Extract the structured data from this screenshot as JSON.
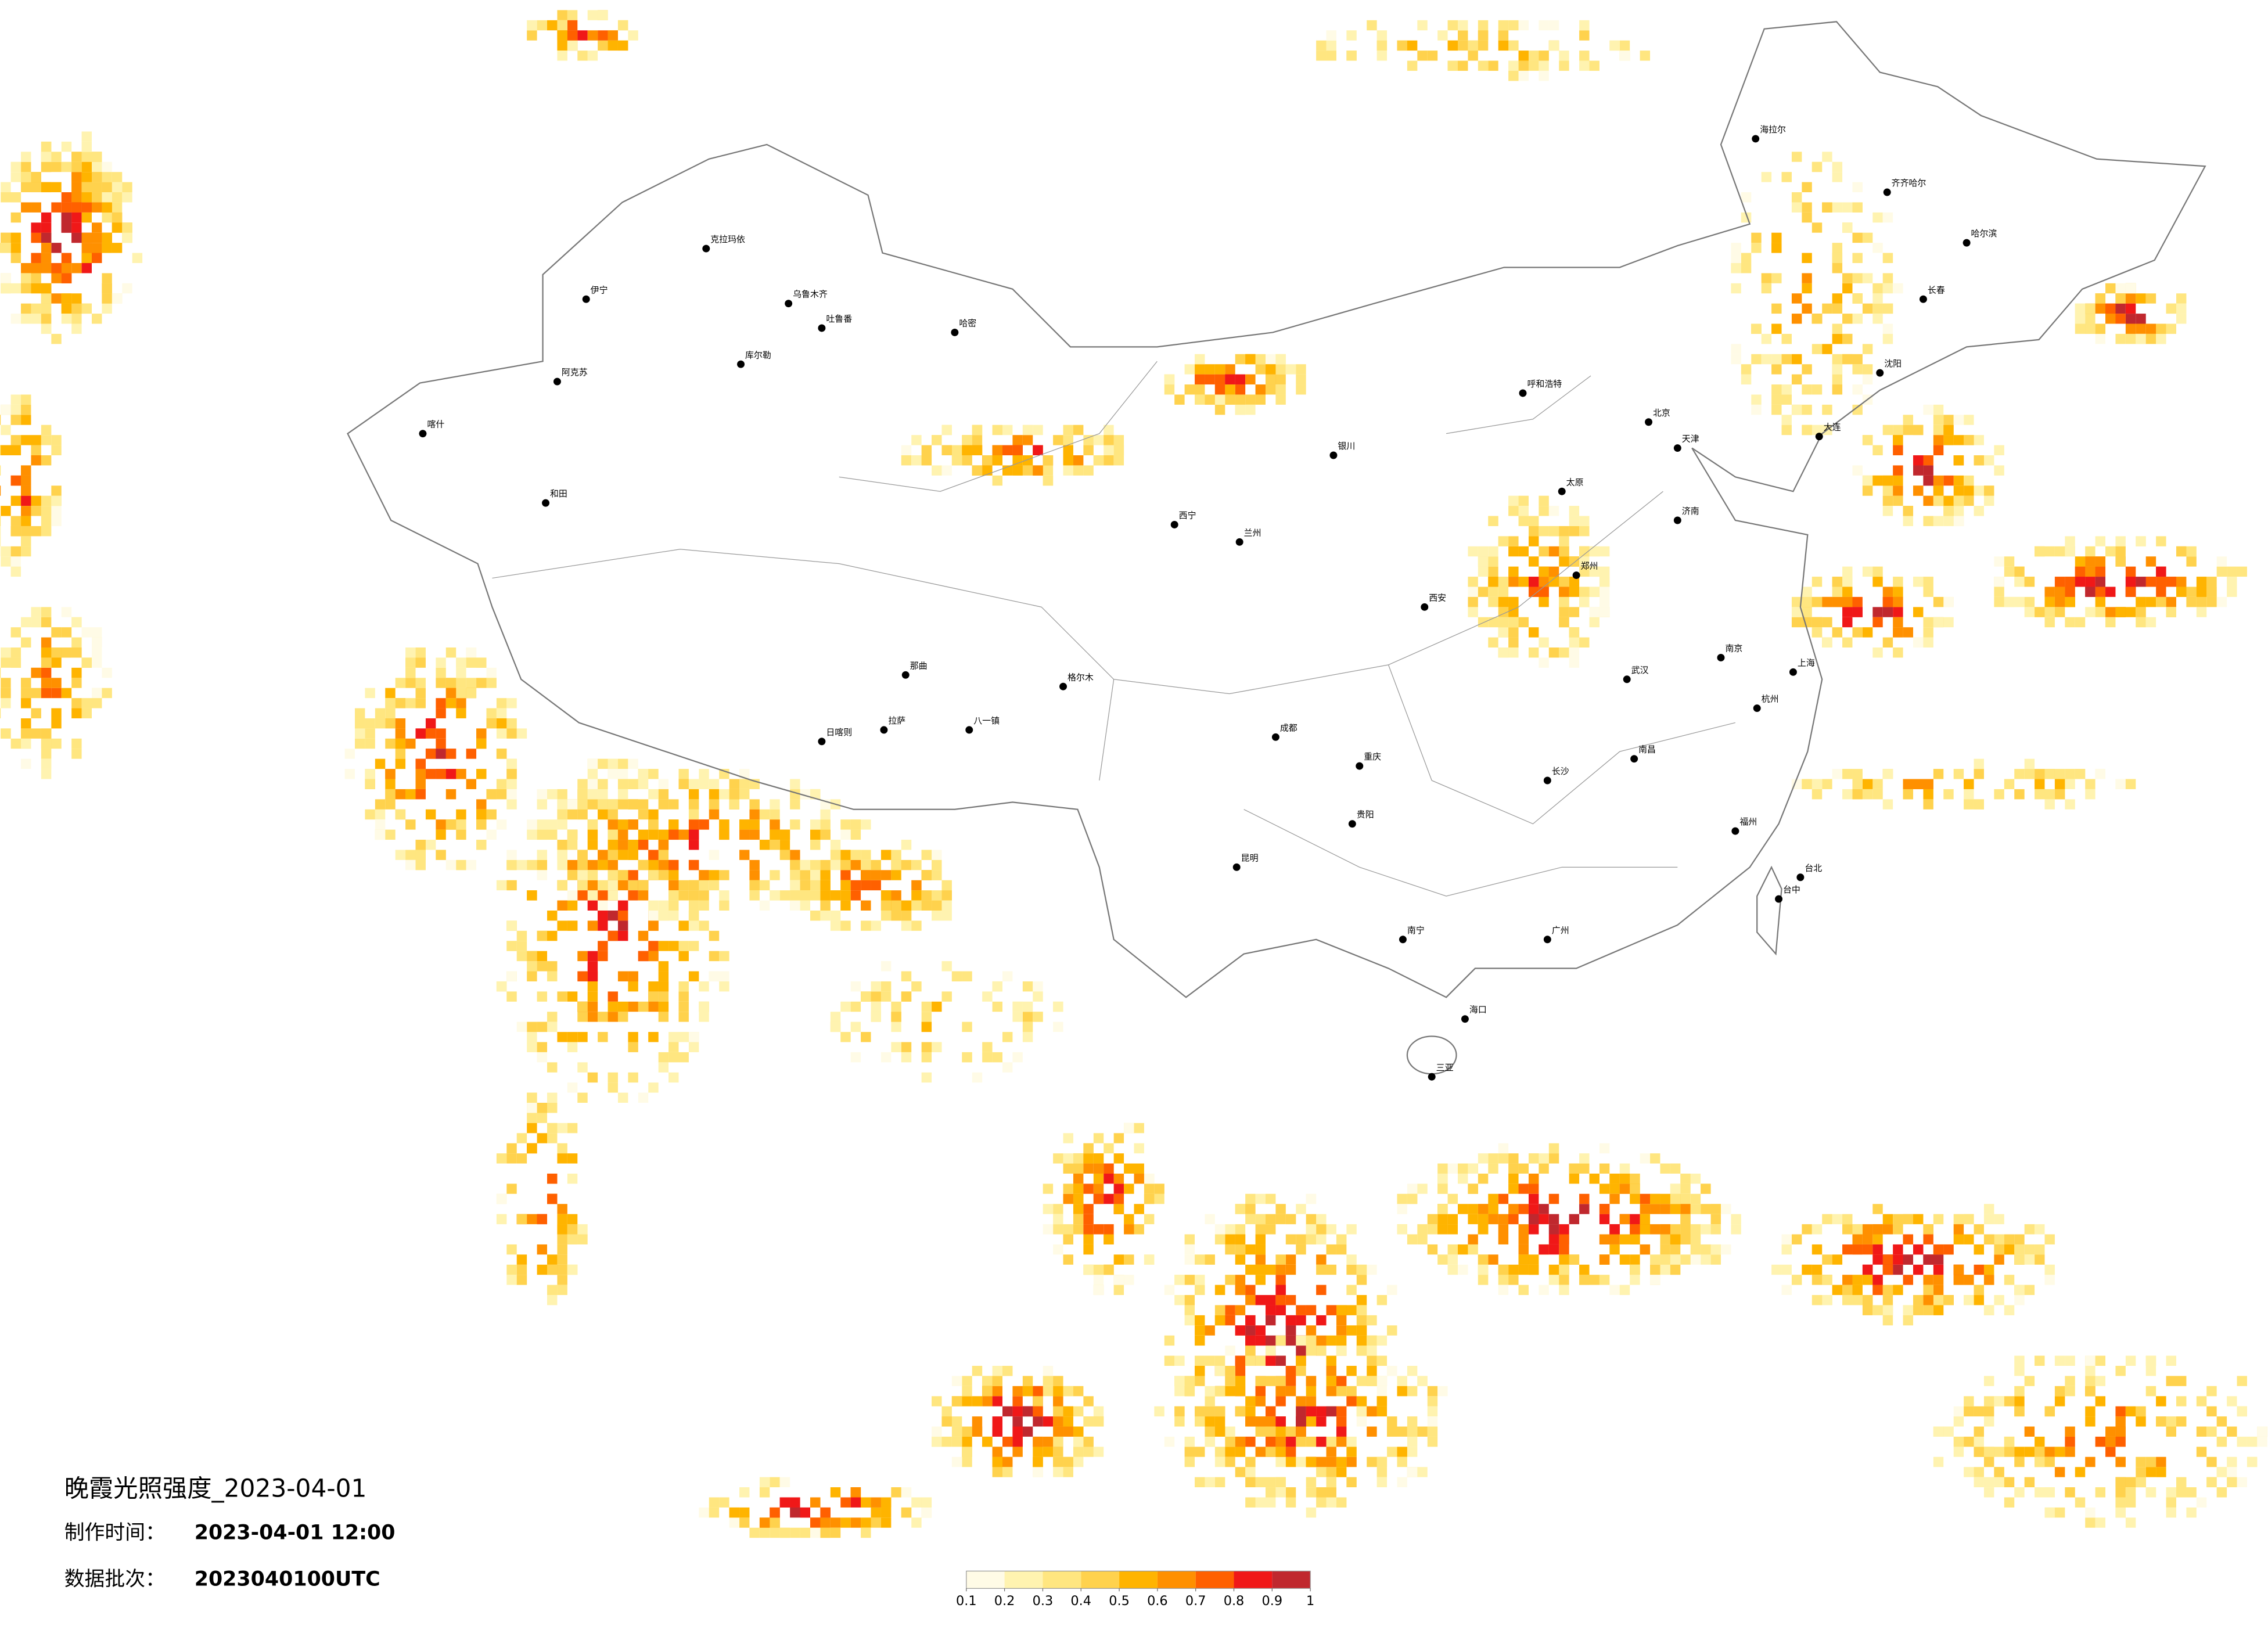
{
  "title": "晚霞光照强度_2023-04-01",
  "production_time": {
    "label": "制作时间：",
    "value": "2023-04-01 12:00"
  },
  "data_batch": {
    "label": "数据批次：",
    "value": "2023040100UTC"
  },
  "colorbar": {
    "ticks": [
      0.1,
      0.2,
      0.3,
      0.4,
      0.5,
      0.6,
      0.7,
      0.8,
      0.9,
      1
    ],
    "colors": [
      "#fffbe6",
      "#fff3b0",
      "#ffe680",
      "#ffd24d",
      "#ffb400",
      "#ff9000",
      "#ff6000",
      "#f01818",
      "#c0282e"
    ]
  },
  "cities": [
    {
      "name": "哈密"
    },
    {
      "name": "乌鲁木齐"
    },
    {
      "name": "克拉玛依"
    },
    {
      "name": "伊宁"
    },
    {
      "name": "阿克苏"
    },
    {
      "name": "喀什"
    },
    {
      "name": "和田"
    },
    {
      "name": "库尔勒"
    },
    {
      "name": "吐鲁番"
    },
    {
      "name": "格尔木"
    },
    {
      "name": "拉萨"
    },
    {
      "name": "日喀则"
    },
    {
      "name": "那曲"
    },
    {
      "name": "八一镇"
    },
    {
      "name": "西宁"
    },
    {
      "name": "兰州"
    },
    {
      "name": "银川"
    },
    {
      "name": "呼和浩特"
    },
    {
      "name": "海拉尔"
    },
    {
      "name": "齐齐哈尔"
    },
    {
      "name": "哈尔滨"
    },
    {
      "name": "长春"
    },
    {
      "name": "沈阳"
    },
    {
      "name": "大连"
    },
    {
      "name": "北京"
    },
    {
      "name": "天津"
    },
    {
      "name": "济南"
    },
    {
      "name": "太原"
    },
    {
      "name": "郑州"
    },
    {
      "name": "西安"
    },
    {
      "name": "成都"
    },
    {
      "name": "重庆"
    },
    {
      "name": "武汉"
    },
    {
      "name": "南京"
    },
    {
      "name": "上海"
    },
    {
      "name": "杭州"
    },
    {
      "name": "长沙"
    },
    {
      "name": "南昌"
    },
    {
      "name": "福州"
    },
    {
      "name": "贵阳"
    },
    {
      "name": "昆明"
    },
    {
      "name": "南宁"
    },
    {
      "name": "广州"
    },
    {
      "name": "海口"
    },
    {
      "name": "三亚"
    },
    {
      "name": "台北"
    },
    {
      "name": "台中"
    }
  ]
}
